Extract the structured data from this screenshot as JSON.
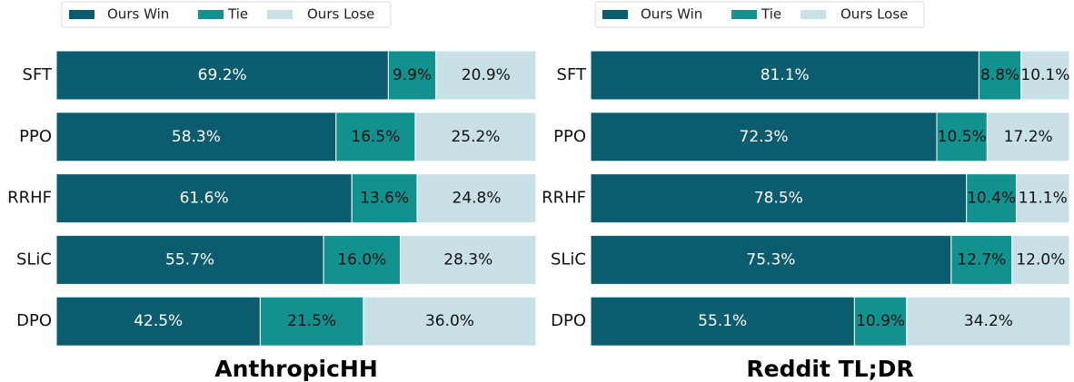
{
  "chart_data": [
    {
      "type": "stacked_bar_horizontal",
      "title": "AnthropicHH",
      "categories": [
        "SFT",
        "PPO",
        "RRHF",
        "SLiC",
        "DPO"
      ],
      "xlim": [
        0,
        100
      ],
      "series": [
        {
          "name": "Ours Win",
          "color": "#0b5c6e",
          "values": [
            69.2,
            58.3,
            61.6,
            55.7,
            42.5
          ],
          "value_labels": [
            "69.2%",
            "58.3%",
            "61.6%",
            "55.7%",
            "42.5%"
          ]
        },
        {
          "name": "Tie",
          "color": "#12918f",
          "values": [
            9.9,
            16.5,
            13.6,
            16.0,
            21.5
          ],
          "value_labels": [
            "9.9%",
            "16.5%",
            "13.6%",
            "16.0%",
            "21.5%"
          ]
        },
        {
          "name": "Ours Lose",
          "color": "#c8e0e6",
          "values": [
            20.9,
            25.2,
            24.8,
            28.3,
            36.0
          ],
          "value_labels": [
            "20.9%",
            "25.2%",
            "24.8%",
            "28.3%",
            "36.0%"
          ]
        }
      ]
    },
    {
      "type": "stacked_bar_horizontal",
      "title": "Reddit TL;DR",
      "categories": [
        "SFT",
        "PPO",
        "RRHF",
        "SLiC",
        "DPO"
      ],
      "xlim": [
        0,
        100
      ],
      "series": [
        {
          "name": "Ours Win",
          "color": "#0b5c6e",
          "values": [
            81.1,
            72.3,
            78.5,
            75.3,
            55.1
          ],
          "value_labels": [
            "81.1%",
            "72.3%",
            "78.5%",
            "75.3%",
            "55.1%"
          ]
        },
        {
          "name": "Tie",
          "color": "#12918f",
          "values": [
            8.8,
            10.5,
            10.4,
            12.7,
            10.9
          ],
          "value_labels": [
            "8.8%",
            "10.5%",
            "10.4%",
            "12.7%",
            "10.9%"
          ]
        },
        {
          "name": "Ours Lose",
          "color": "#c8e0e6",
          "values": [
            10.1,
            17.2,
            11.1,
            12.0,
            34.2
          ],
          "value_labels": [
            "10.1%",
            "17.2%",
            "11.1%",
            "12.0%",
            "34.2%"
          ]
        }
      ]
    }
  ]
}
